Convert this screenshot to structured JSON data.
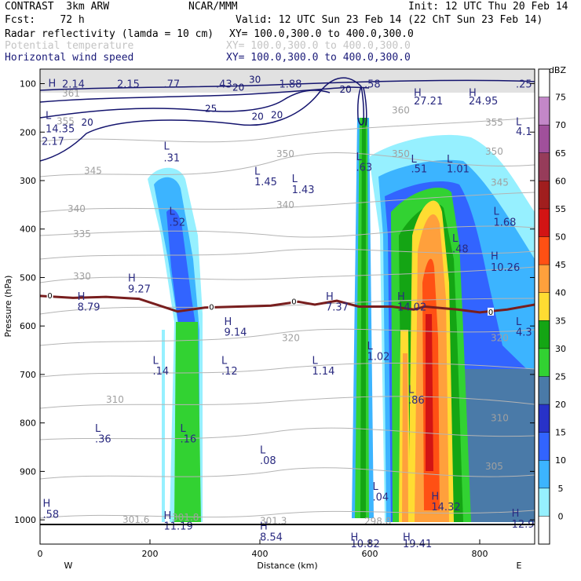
{
  "header": {
    "line1_left": "CONTRAST  3km ARW",
    "line1_mid": "NCAR/MMM",
    "line1_right": "Init: 12 UTC Thu 20 Feb 14",
    "line2_left": "Fcst:    72 h",
    "line2_right": "Valid: 12 UTC Sun 23 Feb 14 (22 ChT Sun 23 Feb 14)",
    "field1": "Radar reflectivity (lamda = 10 cm)",
    "field1_xy": "XY= 100.0,300.0 to 400.0,300.0",
    "field2": "Potential temperature",
    "field2_xy": "XY= 100.0,300.0 to 400.0,300.0",
    "field3": "Horizontal wind speed",
    "field3_xy": "XY= 100.0,300.0 to 400.0,300.0"
  },
  "colors": {
    "shading": [
      "#ffffff",
      "#96f0ff",
      "#3cb4ff",
      "#3264ff",
      "#2832c8",
      "#4a7aa8",
      "#32d232",
      "#14a514",
      "#ffdc32",
      "#ffa03c",
      "#ff5014",
      "#d21414",
      "#a01e1e",
      "#963c5a",
      "#a0509b",
      "#c387c8",
      "#ffffff"
    ],
    "wind_contour": "#14146e",
    "theta_contour": "#b4b4b4",
    "freezing": "#781e1e",
    "label_blue": "#2a2a80"
  },
  "chart_data": {
    "type": "heatmap",
    "xlabel": "Distance (km)",
    "ylabel": "Pressure (hPa)",
    "xlim": [
      0,
      900
    ],
    "ylim": [
      1050,
      70
    ],
    "x_ticks": [
      "0",
      "200",
      "400",
      "600",
      "800"
    ],
    "x_tick_values": [
      0,
      200,
      400,
      600,
      800
    ],
    "y_ticks": [
      "100",
      "200",
      "300",
      "400",
      "500",
      "600",
      "700",
      "800",
      "900",
      "1000"
    ],
    "y_tick_values": [
      100,
      200,
      300,
      400,
      500,
      600,
      700,
      800,
      900,
      1000
    ],
    "left_end_label": "W",
    "right_end_label": "E",
    "colorbar": {
      "unit": "dBZ",
      "levels": [
        "0",
        "5",
        "10",
        "15",
        "20",
        "25",
        "30",
        "35",
        "40",
        "45",
        "50",
        "55",
        "60",
        "65",
        "70",
        "75"
      ]
    },
    "freezing_level": {
      "label": "0",
      "points": [
        [
          0,
          538
        ],
        [
          60,
          542
        ],
        [
          120,
          540
        ],
        [
          180,
          544
        ],
        [
          250,
          570
        ],
        [
          300,
          562
        ],
        [
          360,
          560
        ],
        [
          420,
          558
        ],
        [
          470,
          550
        ],
        [
          500,
          556
        ],
        [
          540,
          548
        ],
        [
          580,
          560
        ],
        [
          640,
          560
        ],
        [
          680,
          566
        ],
        [
          700,
          560
        ],
        [
          760,
          566
        ],
        [
          800,
          572
        ],
        [
          850,
          566
        ],
        [
          900,
          556
        ]
      ],
      "label_x": [
        18,
        312,
        462,
        820
      ]
    },
    "theta_labels": [
      {
        "text": "355",
        "x": 30,
        "p": 178
      },
      {
        "text": "345",
        "x": 80,
        "p": 280
      },
      {
        "text": "340",
        "x": 50,
        "p": 358
      },
      {
        "text": "335",
        "x": 60,
        "p": 410
      },
      {
        "text": "330",
        "x": 60,
        "p": 498
      },
      {
        "text": "350",
        "x": 430,
        "p": 245
      },
      {
        "text": "340",
        "x": 430,
        "p": 350
      },
      {
        "text": "350",
        "x": 640,
        "p": 245
      },
      {
        "text": "360",
        "x": 640,
        "p": 155
      },
      {
        "text": "355",
        "x": 810,
        "p": 180
      },
      {
        "text": "350",
        "x": 810,
        "p": 240
      },
      {
        "text": "345",
        "x": 820,
        "p": 304
      },
      {
        "text": "320",
        "x": 440,
        "p": 625
      },
      {
        "text": "310",
        "x": 120,
        "p": 752
      },
      {
        "text": "310",
        "x": 820,
        "p": 790
      },
      {
        "text": "305",
        "x": 810,
        "p": 890
      },
      {
        "text": "301.6",
        "x": 150,
        "p": 1000
      },
      {
        "text": "301.3",
        "x": 400,
        "p": 1002
      },
      {
        "text": "298.8",
        "x": 590,
        "p": 1003
      },
      {
        "text": "301.8",
        "x": 240,
        "p": 995
      },
      {
        "text": "320",
        "x": 820,
        "p": 625
      },
      {
        "text": "361",
        "x": 40,
        "p": 120
      }
    ],
    "wind_labels": [
      {
        "text": "20",
        "x": 75,
        "p": 180
      },
      {
        "text": "25",
        "x": 300,
        "p": 152
      },
      {
        "text": "20",
        "x": 385,
        "p": 168
      },
      {
        "text": "20",
        "x": 420,
        "p": 165
      },
      {
        "text": "20",
        "x": 350,
        "p": 108
      },
      {
        "text": "20",
        "x": 545,
        "p": 112
      },
      {
        "text": "30",
        "x": 380,
        "p": 92
      }
    ],
    "extrema": [
      {
        "text": "H",
        "x": 15,
        "p": 98
      },
      {
        "text": "2.14",
        "x": 40,
        "p": 100
      },
      {
        "text": "2.15",
        "x": 140,
        "p": 100
      },
      {
        "text": ".77",
        "x": 225,
        "p": 100
      },
      {
        "text": ".43",
        "x": 320,
        "p": 100
      },
      {
        "text": "1.88",
        "x": 435,
        "p": 100
      },
      {
        "text": ".58",
        "x": 590,
        "p": 100
      },
      {
        "text": ".25",
        "x": 880,
        "p": 100
      },
      {
        "text": "L",
        "x": 10,
        "p": 165
      },
      {
        "text": "14.35",
        "x": 10,
        "p": 192
      },
      {
        "text": "H",
        "x": 680,
        "p": 118
      },
      {
        "text": "27.21",
        "x": 680,
        "p": 135
      },
      {
        "text": "H",
        "x": 780,
        "p": 118
      },
      {
        "text": "24.95",
        "x": 780,
        "p": 135
      },
      {
        "text": "L",
        "x": 880,
        "p": 178
      },
      {
        "text": "4.1",
        "x": 880,
        "p": 198
      },
      {
        "text": "2.17",
        "x": 0,
        "p": 218
      },
      {
        "text": "L",
        "x": 225,
        "p": 228
      },
      {
        "text": ".31",
        "x": 225,
        "p": 252
      },
      {
        "text": "L",
        "x": 390,
        "p": 280
      },
      {
        "text": "1.45",
        "x": 390,
        "p": 302
      },
      {
        "text": "L",
        "x": 458,
        "p": 295
      },
      {
        "text": "1.43",
        "x": 458,
        "p": 318
      },
      {
        "text": "L",
        "x": 575,
        "p": 250
      },
      {
        "text": ".63",
        "x": 575,
        "p": 272
      },
      {
        "text": "L",
        "x": 675,
        "p": 255
      },
      {
        "text": ".51",
        "x": 675,
        "p": 275
      },
      {
        "text": "L",
        "x": 740,
        "p": 255
      },
      {
        "text": "1.01",
        "x": 740,
        "p": 275
      },
      {
        "text": "L",
        "x": 235,
        "p": 362
      },
      {
        "text": ".52",
        "x": 235,
        "p": 385
      },
      {
        "text": "L",
        "x": 825,
        "p": 362
      },
      {
        "text": "1.68",
        "x": 825,
        "p": 385
      },
      {
        "text": "L",
        "x": 750,
        "p": 418
      },
      {
        "text": ".48",
        "x": 750,
        "p": 440
      },
      {
        "text": "H",
        "x": 820,
        "p": 455
      },
      {
        "text": "10.26",
        "x": 820,
        "p": 478
      },
      {
        "text": "H",
        "x": 160,
        "p": 500
      },
      {
        "text": "9.27",
        "x": 160,
        "p": 523
      },
      {
        "text": "H",
        "x": 68,
        "p": 538
      },
      {
        "text": "8.79",
        "x": 68,
        "p": 560
      },
      {
        "text": "H",
        "x": 520,
        "p": 538
      },
      {
        "text": "7.37",
        "x": 520,
        "p": 560
      },
      {
        "text": "H",
        "x": 650,
        "p": 538
      },
      {
        "text": "14.02",
        "x": 650,
        "p": 560
      },
      {
        "text": "H",
        "x": 335,
        "p": 590
      },
      {
        "text": "9.14",
        "x": 335,
        "p": 612
      },
      {
        "text": "L",
        "x": 880,
        "p": 590
      },
      {
        "text": "4.3",
        "x": 880,
        "p": 612
      },
      {
        "text": "L",
        "x": 595,
        "p": 640
      },
      {
        "text": "1.02",
        "x": 595,
        "p": 662
      },
      {
        "text": "L",
        "x": 205,
        "p": 670
      },
      {
        "text": ".14",
        "x": 205,
        "p": 692
      },
      {
        "text": "L",
        "x": 330,
        "p": 670
      },
      {
        "text": ".12",
        "x": 330,
        "p": 692
      },
      {
        "text": "L",
        "x": 495,
        "p": 670
      },
      {
        "text": "1.14",
        "x": 495,
        "p": 692
      },
      {
        "text": "L",
        "x": 670,
        "p": 730
      },
      {
        "text": ".86",
        "x": 670,
        "p": 752
      },
      {
        "text": "L",
        "x": 100,
        "p": 810
      },
      {
        "text": ".36",
        "x": 100,
        "p": 832
      },
      {
        "text": "L",
        "x": 255,
        "p": 810
      },
      {
        "text": ".16",
        "x": 255,
        "p": 832
      },
      {
        "text": "L",
        "x": 400,
        "p": 855
      },
      {
        "text": ".08",
        "x": 400,
        "p": 877
      },
      {
        "text": "L",
        "x": 605,
        "p": 930
      },
      {
        "text": ".04",
        "x": 605,
        "p": 952
      },
      {
        "text": "H",
        "x": 712,
        "p": 950
      },
      {
        "text": "14.32",
        "x": 712,
        "p": 972
      },
      {
        "text": "H",
        "x": 5,
        "p": 965
      },
      {
        "text": ".58",
        "x": 5,
        "p": 988
      },
      {
        "text": "H",
        "x": 225,
        "p": 990
      },
      {
        "text": "11.19",
        "x": 225,
        "p": 1012
      },
      {
        "text": "H",
        "x": 400,
        "p": 1012
      },
      {
        "text": "8.54",
        "x": 400,
        "p": 1035
      },
      {
        "text": "H",
        "x": 858,
        "p": 985
      },
      {
        "text": "12.9",
        "x": 858,
        "p": 1008
      },
      {
        "text": "H",
        "x": 565,
        "p": 1035
      },
      {
        "text": "10.82",
        "x": 565,
        "p": 1048
      },
      {
        "text": "H",
        "x": 660,
        "p": 1035
      },
      {
        "text": "19.41",
        "x": 660,
        "p": 1048
      }
    ]
  }
}
